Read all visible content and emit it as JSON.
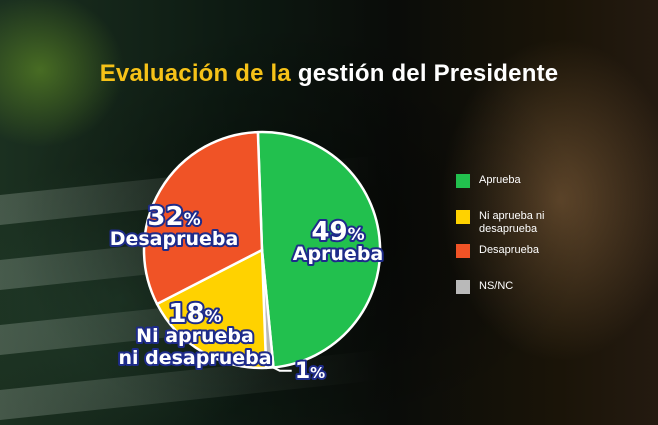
{
  "title": {
    "part1": "Evaluación de la",
    "part2": "gestión del Presidente"
  },
  "colors": {
    "aprueba": "#22c04e",
    "ni": "#ffd200",
    "desaprueba": "#f05326",
    "nsnc": "#b9b9b9",
    "title_yellow": "#f6c218",
    "label_text": "#ffffff",
    "label_outline": "#1e2b8a"
  },
  "chart_data": {
    "type": "pie",
    "title": "Evaluación de la gestión del Presidente",
    "slices": [
      {
        "key": "aprueba",
        "label": "Aprueba",
        "value": 49,
        "data_labels": [
          "Aprueba"
        ]
      },
      {
        "key": "nsnc",
        "label": "NS/NC",
        "value": 1,
        "data_labels": []
      },
      {
        "key": "ni",
        "label": "Ni aprueba ni desaprueba",
        "value": 18,
        "data_labels": [
          "Ni aprueba",
          "ni desaprueba"
        ]
      },
      {
        "key": "desaprueba",
        "label": "Desaprueba",
        "value": 32,
        "data_labels": [
          "Desaprueba"
        ]
      }
    ],
    "unit": "%",
    "legend_position": "right"
  },
  "legend": [
    {
      "key": "aprueba",
      "label": "Aprueba"
    },
    {
      "key": "ni",
      "label": "Ni aprueba ni desaprueba"
    },
    {
      "key": "desaprueba",
      "label": "Desaprueba"
    },
    {
      "key": "nsnc",
      "label": "NS/NC"
    }
  ]
}
